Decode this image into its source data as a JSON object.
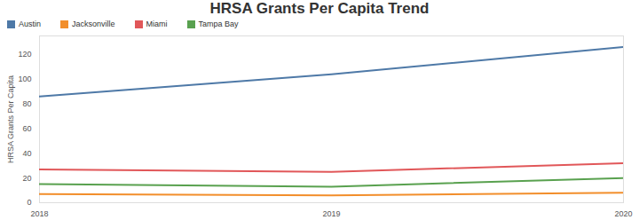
{
  "chart_data": {
    "type": "line",
    "title": "HRSA Grants Per Capita Trend",
    "x": [
      "2018",
      "2019",
      "2020"
    ],
    "y_label": "HRSA Grants Per Capita",
    "series": [
      {
        "name": "Austin",
        "color": "#4e79a7",
        "values": [
          86,
          104,
          126
        ]
      },
      {
        "name": "Jacksonville",
        "color": "#f28e2b",
        "values": [
          7,
          6,
          8
        ]
      },
      {
        "name": "Miami",
        "color": "#e15759",
        "values": [
          27,
          25,
          32
        ]
      },
      {
        "name": "Tampa Bay",
        "color": "#59a14f",
        "values": [
          15,
          13,
          20
        ]
      }
    ],
    "ylim": [
      0,
      135
    ],
    "yticks": [
      0,
      20,
      40,
      60,
      80,
      100,
      120
    ],
    "grid": false,
    "legend": "top-left"
  }
}
